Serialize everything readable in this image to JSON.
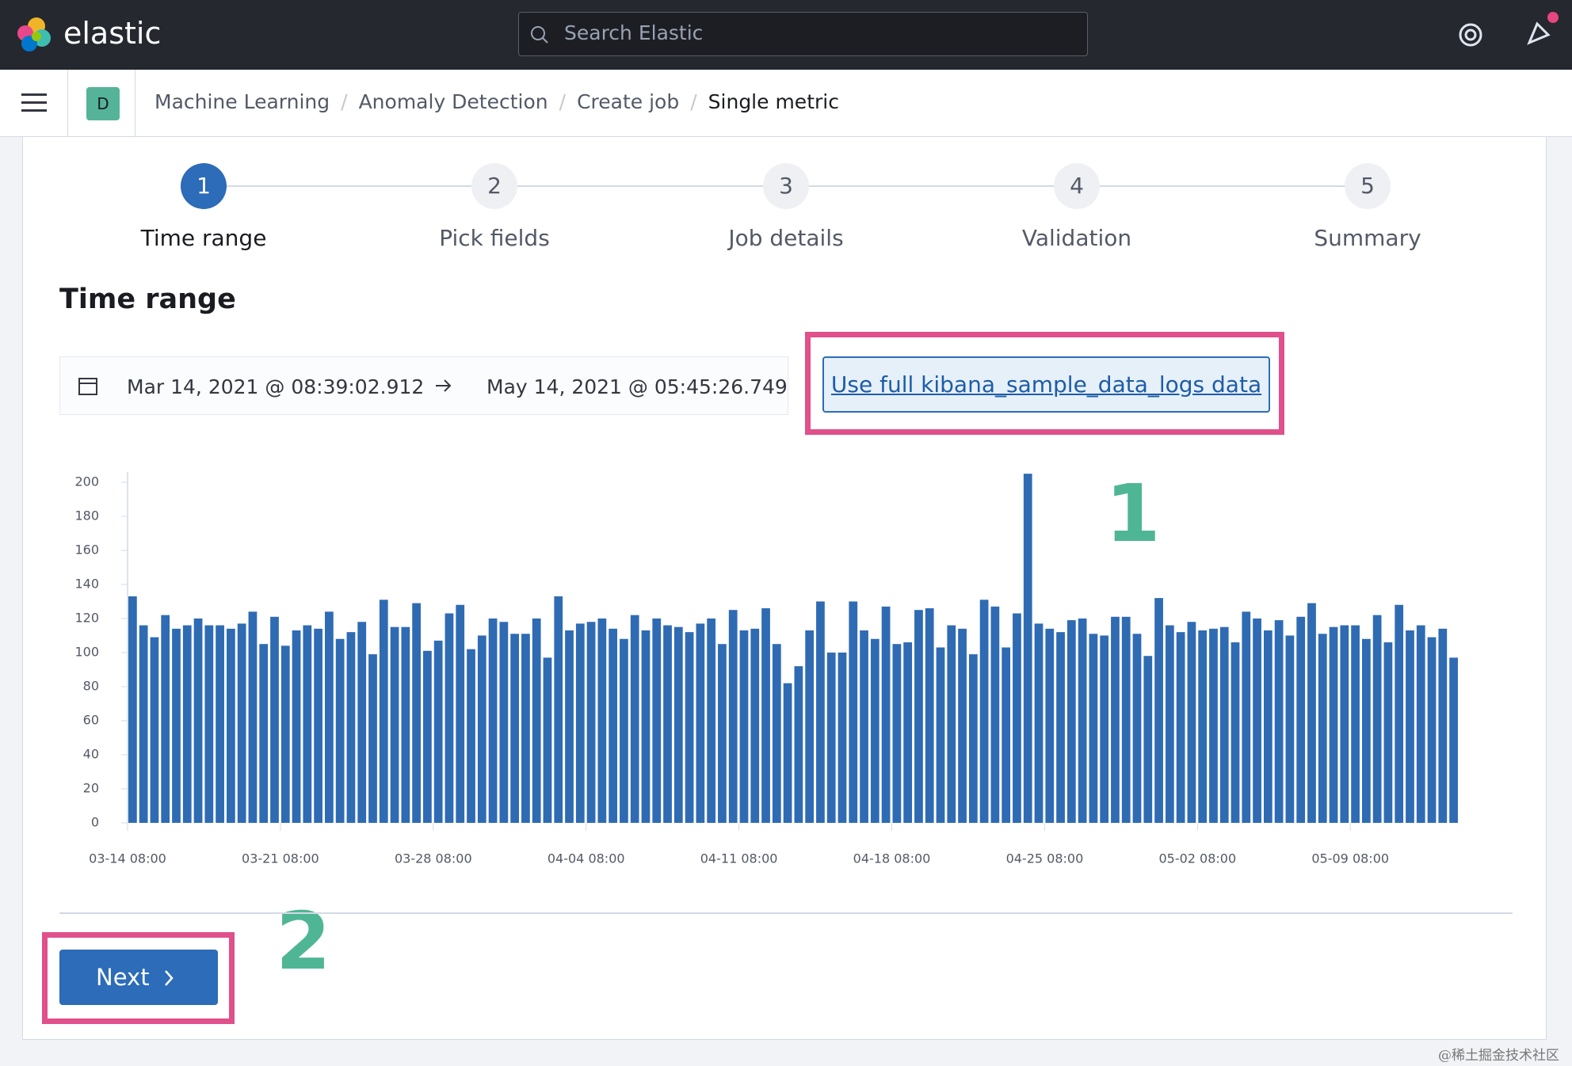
{
  "header": {
    "brand": "elastic",
    "search_placeholder": "Search Elastic"
  },
  "breadcrumbs": {
    "space": "D",
    "items": [
      "Machine Learning",
      "Anomaly Detection",
      "Create job",
      "Single metric"
    ]
  },
  "steps": [
    {
      "number": 1,
      "label": "Time range"
    },
    {
      "number": 2,
      "label": "Pick fields"
    },
    {
      "number": 3,
      "label": "Job details"
    },
    {
      "number": 4,
      "label": "Validation"
    },
    {
      "number": 5,
      "label": "Summary"
    }
  ],
  "section_title": "Time range",
  "date_range": {
    "start": "Mar 14, 2021 @ 08:39:02.912",
    "end": "May 14, 2021 @ 05:45:26.749"
  },
  "full_data_button": "Use full kibana_sample_data_logs data",
  "chart_data": {
    "type": "bar",
    "color": "#2f6bb3",
    "values": [
      133,
      116,
      109,
      122,
      114,
      116,
      120,
      116,
      116,
      114,
      117,
      124,
      105,
      121,
      104,
      113,
      116,
      114,
      124,
      108,
      112,
      118,
      99,
      131,
      115,
      115,
      129,
      101,
      107,
      123,
      128,
      102,
      110,
      120,
      118,
      111,
      111,
      120,
      97,
      133,
      113,
      117,
      118,
      120,
      114,
      108,
      122,
      113,
      120,
      116,
      115,
      112,
      117,
      120,
      105,
      125,
      113,
      114,
      126,
      105,
      82,
      92,
      113,
      130,
      100,
      100,
      130,
      113,
      108,
      127,
      105,
      106,
      125,
      126,
      103,
      116,
      114,
      99,
      131,
      127,
      103,
      123,
      205,
      117,
      114,
      112,
      119,
      120,
      111,
      110,
      121,
      121,
      111,
      98,
      132,
      116,
      112,
      118,
      113,
      114,
      115,
      106,
      124,
      120,
      113,
      119,
      110,
      121,
      129,
      111,
      115,
      116,
      116,
      108,
      122,
      106,
      128,
      113,
      116,
      109,
      114,
      97
    ],
    "xlim": [
      0,
      122
    ],
    "xticks": [
      {
        "value": 0,
        "label": "03-14 08:00"
      },
      {
        "value": 14,
        "label": "03-21 08:00"
      },
      {
        "value": 28,
        "label": "03-28 08:00"
      },
      {
        "value": 42,
        "label": "04-04 08:00"
      },
      {
        "value": 56,
        "label": "04-11 08:00"
      },
      {
        "value": 70,
        "label": "04-18 08:00"
      },
      {
        "value": 84,
        "label": "04-25 08:00"
      },
      {
        "value": 98,
        "label": "05-02 08:00"
      },
      {
        "value": 112,
        "label": "05-09 08:00"
      }
    ],
    "ylim": [
      0,
      206
    ],
    "yticks": [
      0,
      20,
      40,
      60,
      80,
      100,
      120,
      140,
      160,
      180,
      200
    ],
    "grid": false
  },
  "annotations": [
    "1",
    "2"
  ],
  "next_button": "Next",
  "watermark": "@稀土掘金技术社区"
}
